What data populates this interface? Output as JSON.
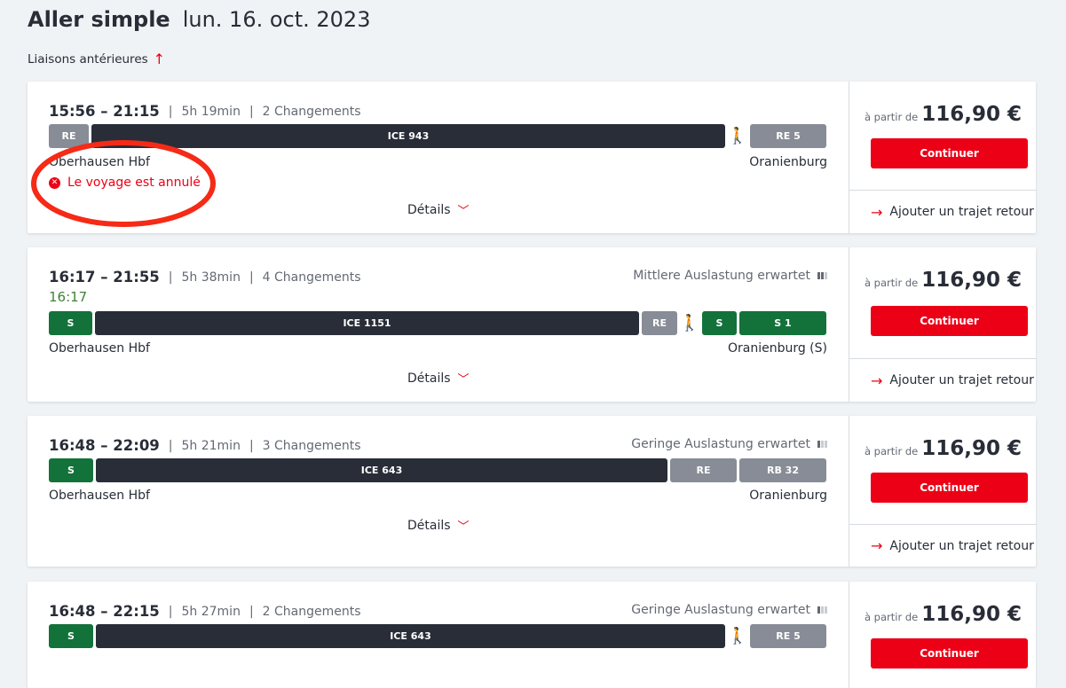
{
  "header": {
    "title": "Aller simple",
    "date": "lun. 16. oct. 2023",
    "earlier_label": "Liaisons antérieures"
  },
  "common": {
    "price_prefix": "à partir de",
    "continue_label": "Continuer",
    "return_label": "Ajouter un trajet retour",
    "details_label": "Détails"
  },
  "colors": {
    "accent": "#ec0016",
    "regional": "#878c96",
    "ice": "#282d37",
    "sbahn": "#13723a",
    "annotation": "#f52a17"
  },
  "journeys": [
    {
      "time": "15:56 – 21:15",
      "duration": "5h 19min",
      "changes": "2 Changements",
      "from": "Oberhausen Hbf",
      "to": "Oranienburg",
      "price": "116,90 €",
      "status": "Le voyage est annulé",
      "segments": [
        "RE",
        "ICE 943",
        "RE 5"
      ]
    },
    {
      "time": "16:17 – 21:55",
      "duration": "5h 38min",
      "changes": "4 Changements",
      "occupancy": "Mittlere Auslastung erwartet",
      "delay": "16:17",
      "from": "Oberhausen Hbf",
      "to": "Oranienburg (S)",
      "price": "116,90 €",
      "segments": [
        "S",
        "ICE 1151",
        "RE",
        "S",
        "S 1"
      ]
    },
    {
      "time": "16:48 – 22:09",
      "duration": "5h 21min",
      "changes": "3 Changements",
      "occupancy": "Geringe Auslastung erwartet",
      "from": "Oberhausen Hbf",
      "to": "Oranienburg",
      "price": "116,90 €",
      "segments": [
        "S",
        "ICE 643",
        "RE",
        "RB 32"
      ]
    },
    {
      "time": "16:48 – 22:15",
      "duration": "5h 27min",
      "changes": "2 Changements",
      "occupancy": "Geringe Auslastung erwartet",
      "price": "116,90 €",
      "segments": [
        "S",
        "ICE 643",
        "RE 5"
      ]
    }
  ]
}
